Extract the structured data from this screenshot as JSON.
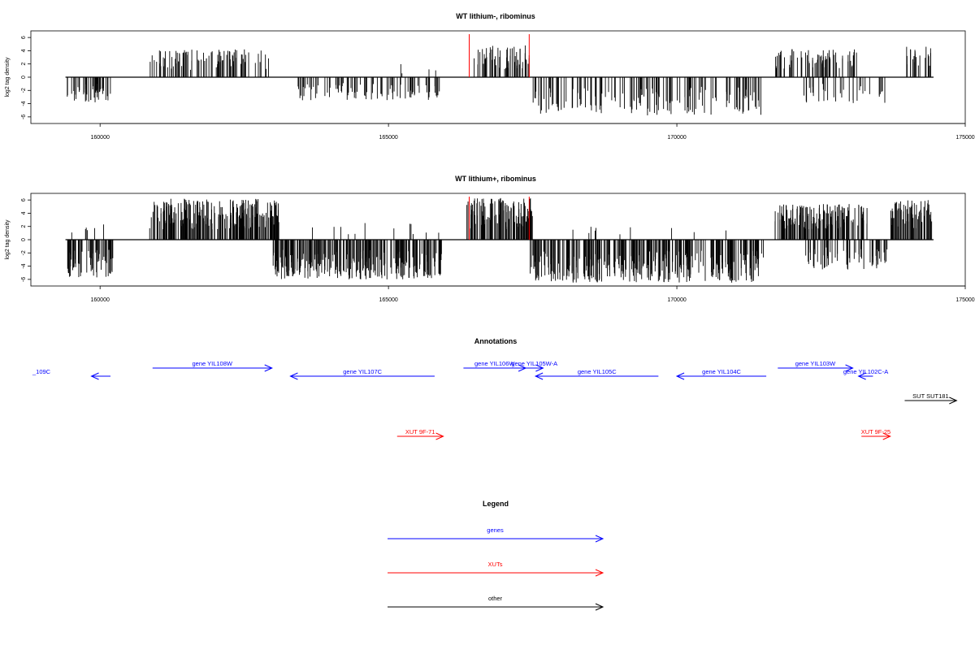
{
  "chart_data": [
    {
      "type": "bar",
      "title": "WT lithium-, ribominus",
      "xlabel": "",
      "ylabel": "log2 tag density",
      "xlim": [
        158800,
        175000
      ],
      "ylim": [
        -7,
        7
      ],
      "xticks": [
        "160000",
        "165000",
        "170000",
        "175000"
      ],
      "yticks": [
        "6",
        "4",
        "2",
        "0",
        "-2",
        "-4",
        "-6"
      ],
      "baseline": {
        "start": 159400,
        "end": 174450
      },
      "marker_lines": [
        166400,
        167440
      ],
      "marker_color": "#ff0000",
      "regions": [
        {
          "start": 159420,
          "end": 160200,
          "sign": -1,
          "max": 3.8,
          "count": 45
        },
        {
          "start": 160850,
          "end": 162930,
          "sign": 1,
          "max": 4.2,
          "count": 95
        },
        {
          "start": 163400,
          "end": 165900,
          "sign": -1,
          "max": 3.5,
          "count": 85
        },
        {
          "start": 165100,
          "end": 165900,
          "sign": 1,
          "max": 2.2,
          "count": 4
        },
        {
          "start": 166480,
          "end": 167480,
          "sign": 1,
          "max": 4.8,
          "count": 55
        },
        {
          "start": 167500,
          "end": 171500,
          "sign": -1,
          "max": 5.8,
          "count": 150
        },
        {
          "start": 171700,
          "end": 173120,
          "sign": 1,
          "max": 4.3,
          "count": 70
        },
        {
          "start": 172200,
          "end": 173650,
          "sign": -1,
          "max": 4.0,
          "count": 35
        },
        {
          "start": 173900,
          "end": 174420,
          "sign": 1,
          "max": 5.0,
          "count": 22
        }
      ]
    },
    {
      "type": "bar",
      "title": "WT lithium+, ribominus",
      "xlabel": "",
      "ylabel": "log2 tag density",
      "xlim": [
        158800,
        175000
      ],
      "ylim": [
        -7,
        7
      ],
      "xticks": [
        "160000",
        "165000",
        "170000",
        "175000"
      ],
      "yticks": [
        "6",
        "4",
        "2",
        "0",
        "-2",
        "-4",
        "-6"
      ],
      "baseline": {
        "start": 159400,
        "end": 174450
      },
      "marker_lines": [
        166400,
        167440
      ],
      "marker_color": "#ff0000",
      "regions": [
        {
          "start": 159420,
          "end": 160250,
          "sign": -1,
          "max": 5.8,
          "count": 70
        },
        {
          "start": 159500,
          "end": 160100,
          "sign": 1,
          "max": 2.5,
          "count": 6
        },
        {
          "start": 160850,
          "end": 163100,
          "sign": 1,
          "max": 6.2,
          "count": 230
        },
        {
          "start": 163000,
          "end": 165950,
          "sign": -1,
          "max": 6.0,
          "count": 250
        },
        {
          "start": 163500,
          "end": 165900,
          "sign": 1,
          "max": 2.8,
          "count": 12
        },
        {
          "start": 166350,
          "end": 167500,
          "sign": 1,
          "max": 6.3,
          "count": 120
        },
        {
          "start": 167450,
          "end": 171500,
          "sign": -1,
          "max": 6.5,
          "count": 320
        },
        {
          "start": 168000,
          "end": 171200,
          "sign": 1,
          "max": 2.0,
          "count": 10
        },
        {
          "start": 171700,
          "end": 173300,
          "sign": 1,
          "max": 5.4,
          "count": 140
        },
        {
          "start": 172200,
          "end": 173650,
          "sign": -1,
          "max": 4.5,
          "count": 60
        },
        {
          "start": 173700,
          "end": 174420,
          "sign": 1,
          "max": 6.0,
          "count": 70
        }
      ]
    }
  ],
  "annotations": {
    "title": "Annotations",
    "xlim": [
      158800,
      175000
    ],
    "features": [
      {
        "label": "_109C",
        "start": 159850,
        "end": 160180,
        "strand": "-",
        "row": 1,
        "color": "#0000ff"
      },
      {
        "label": "gene YIL108W",
        "start": 160910,
        "end": 162980,
        "strand": "+",
        "row": 0,
        "color": "#0000ff"
      },
      {
        "label": "gene YIL107C",
        "start": 163300,
        "end": 165800,
        "strand": "-",
        "row": 1,
        "color": "#0000ff"
      },
      {
        "label": "gene YIL106W",
        "start": 166300,
        "end": 167380,
        "strand": "+",
        "row": 0,
        "color": "#0000ff"
      },
      {
        "label": "gene YIL105W-A",
        "start": 167380,
        "end": 167680,
        "strand": "+",
        "row": 0,
        "color": "#0000ff"
      },
      {
        "label": "gene YIL105C",
        "start": 167550,
        "end": 169680,
        "strand": "-",
        "row": 1,
        "color": "#0000ff"
      },
      {
        "label": "gene YIL104C",
        "start": 170000,
        "end": 171550,
        "strand": "-",
        "row": 1,
        "color": "#0000ff"
      },
      {
        "label": "gene YIL103W",
        "start": 171750,
        "end": 173050,
        "strand": "+",
        "row": 0,
        "color": "#0000ff"
      },
      {
        "label": "gene YIL102C-A",
        "start": 173150,
        "end": 173400,
        "strand": "-",
        "row": 1,
        "color": "#0000ff"
      },
      {
        "label": "SUT SUT181",
        "start": 173950,
        "end": 174850,
        "strand": "+",
        "row": 2,
        "color": "#000000"
      },
      {
        "label": "XUT 9F-71",
        "start": 165150,
        "end": 165950,
        "strand": "+",
        "row": 3,
        "color": "#ff0000"
      },
      {
        "label": "XUT 9F-25",
        "start": 173200,
        "end": 173700,
        "strand": "+",
        "row": 3,
        "color": "#ff0000"
      }
    ]
  },
  "legend": {
    "title": "Legend",
    "items": [
      {
        "label": "genes",
        "color": "#0000ff"
      },
      {
        "label": "XUTs",
        "color": "#ff0000"
      },
      {
        "label": "other",
        "color": "#000000"
      }
    ]
  }
}
